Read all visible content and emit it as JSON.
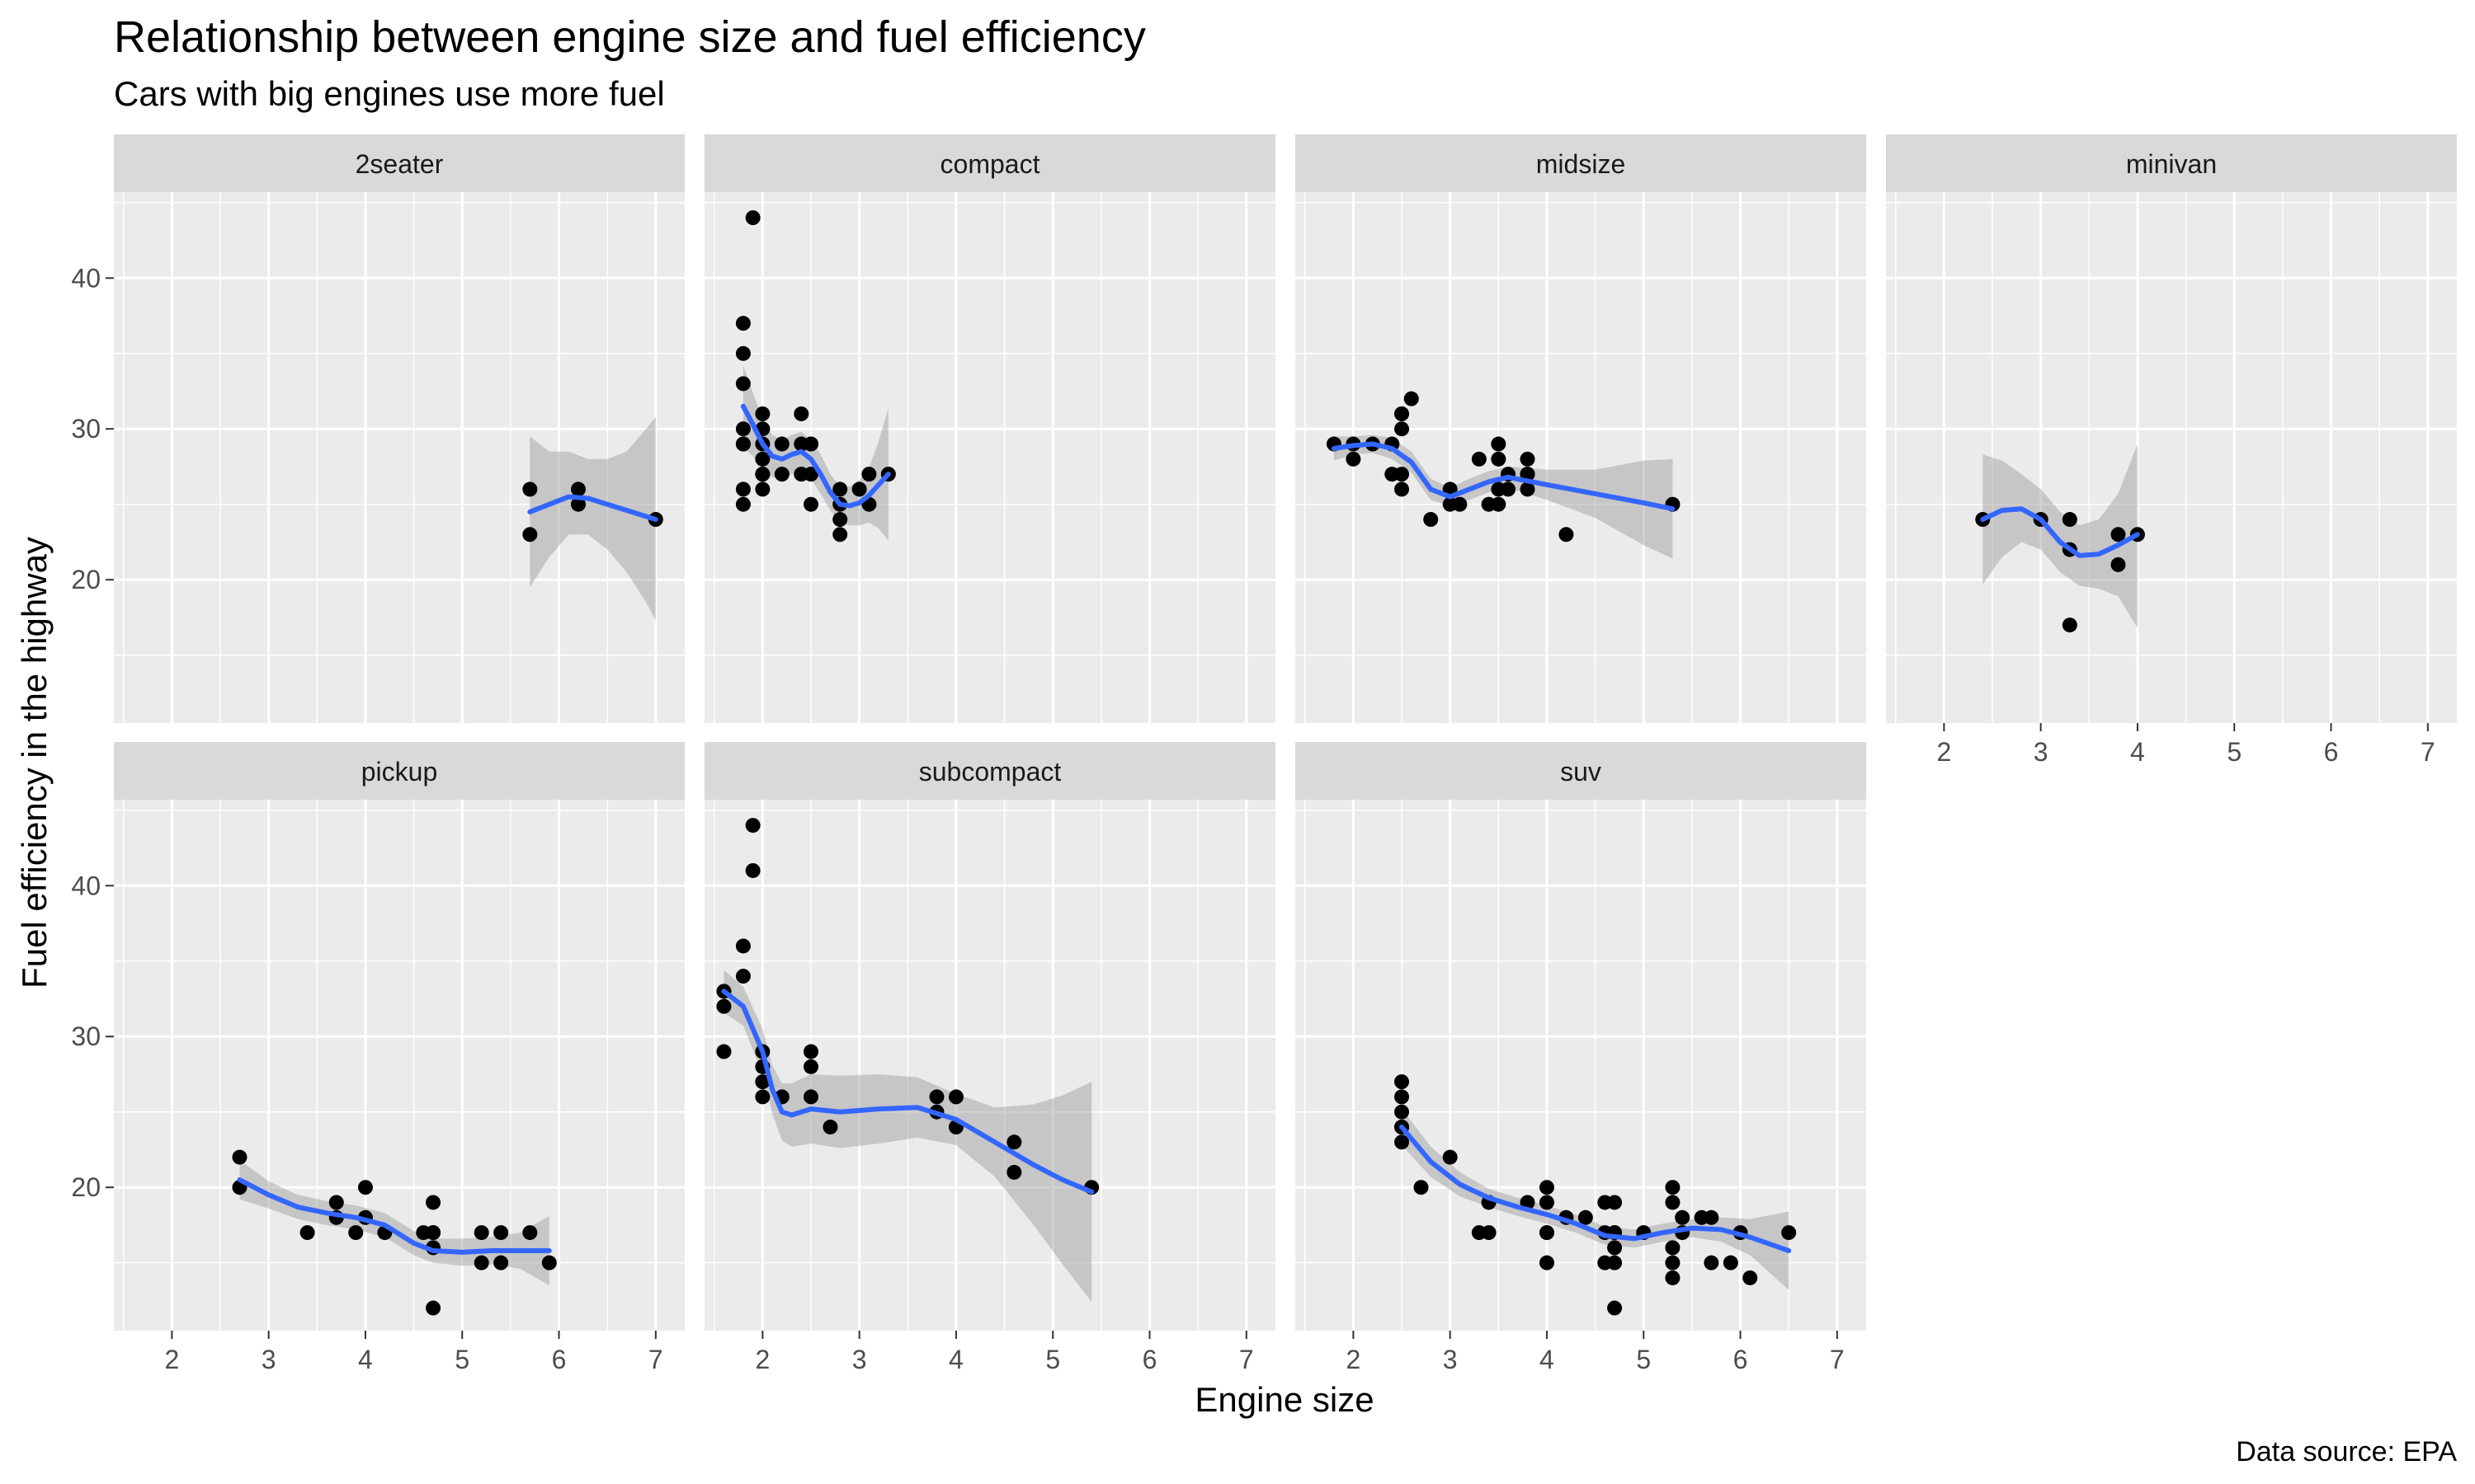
{
  "chart_data": {
    "type": "scatter",
    "title": "Relationship between engine size and fuel efficiency",
    "subtitle": "Cars with big engines use more fuel",
    "caption": "Data source: EPA",
    "xlabel": "Engine size",
    "ylabel": "Fuel efficiency in the highway",
    "xlim": [
      1.4,
      7.3
    ],
    "ylim": [
      10.5,
      45.7
    ],
    "x_ticks": [
      2,
      3,
      4,
      5,
      6,
      7
    ],
    "y_ticks": [
      20,
      30,
      40
    ],
    "grid": true,
    "facet_by": "class",
    "facet_layout": {
      "ncol": 4,
      "nrow": 2
    },
    "colors": {
      "points": "#000000",
      "smooth_line": "#3366FF",
      "ribbon": "#999999",
      "panel_bg": "#EBEBEB",
      "strip_bg": "#D9D9D9",
      "grid": "#FFFFFF"
    },
    "panels": [
      {
        "name": "2seater",
        "x": [
          5.7,
          5.7,
          6.2,
          6.2,
          7.0
        ],
        "y": [
          26,
          23,
          26,
          25,
          24
        ],
        "smooth": {
          "x": [
            5.7,
            5.9,
            6.1,
            6.3,
            6.5,
            6.7,
            6.9,
            7.0
          ],
          "y": [
            24.5,
            25.0,
            25.5,
            25.4,
            25.0,
            24.6,
            24.2,
            24.0
          ],
          "ymin": [
            19.5,
            21.5,
            23.0,
            23.0,
            22.0,
            20.5,
            18.5,
            17.3
          ],
          "ymax": [
            29.5,
            28.5,
            28.5,
            28.0,
            28.0,
            28.5,
            30.0,
            30.8
          ]
        }
      },
      {
        "name": "compact",
        "x": [
          1.8,
          1.8,
          1.8,
          1.8,
          1.8,
          1.8,
          1.8,
          1.8,
          1.9,
          2.0,
          2.0,
          2.0,
          2.0,
          2.0,
          2.0,
          2.0,
          2.2,
          2.2,
          2.4,
          2.4,
          2.4,
          2.5,
          2.5,
          2.5,
          2.5,
          2.8,
          2.8,
          2.8,
          2.8,
          3.0,
          3.1,
          3.1,
          3.3
        ],
        "y": [
          29,
          29,
          30,
          33,
          35,
          37,
          25,
          26,
          44,
          26,
          27,
          28,
          29,
          30,
          31,
          27,
          27,
          29,
          31,
          29,
          27,
          29,
          27,
          25,
          29,
          26,
          24,
          25,
          23,
          26,
          25,
          27,
          27
        ],
        "smooth": {
          "x": [
            1.8,
            1.9,
            2.0,
            2.1,
            2.2,
            2.3,
            2.4,
            2.5,
            2.6,
            2.7,
            2.8,
            2.9,
            3.0,
            3.1,
            3.2,
            3.3
          ],
          "y": [
            31.5,
            30.3,
            29.0,
            28.2,
            28.0,
            28.3,
            28.5,
            28.0,
            27.0,
            25.8,
            25.0,
            24.9,
            25.1,
            25.6,
            26.3,
            27.0
          ],
          "ymin": [
            28.8,
            28.2,
            27.3,
            26.8,
            26.7,
            27.0,
            27.2,
            26.7,
            25.7,
            24.6,
            23.8,
            23.6,
            23.6,
            23.8,
            23.4,
            22.6
          ],
          "ymax": [
            34.2,
            32.4,
            30.7,
            29.6,
            29.3,
            29.6,
            29.8,
            29.3,
            28.3,
            27.0,
            26.2,
            26.2,
            26.6,
            27.4,
            29.2,
            31.4
          ]
        }
      },
      {
        "name": "midsize",
        "x": [
          1.8,
          2.0,
          2.0,
          2.2,
          2.4,
          2.4,
          2.5,
          2.5,
          2.5,
          2.5,
          2.5,
          2.6,
          2.8,
          3.0,
          3.0,
          3.1,
          3.3,
          3.4,
          3.5,
          3.5,
          3.5,
          3.5,
          3.6,
          3.6,
          3.8,
          3.8,
          3.8,
          3.8,
          4.2,
          5.3
        ],
        "y": [
          29,
          29,
          28,
          29,
          27,
          29,
          31,
          30,
          27,
          26,
          31,
          32,
          24,
          26,
          25,
          25,
          28,
          25,
          29,
          28,
          26,
          25,
          27,
          26,
          28,
          27,
          26,
          27,
          23,
          25
        ],
        "smooth": {
          "x": [
            1.8,
            2.0,
            2.2,
            2.4,
            2.6,
            2.8,
            3.0,
            3.2,
            3.4,
            3.6,
            4.0,
            4.5,
            5.0,
            5.3
          ],
          "y": [
            28.7,
            28.9,
            29.0,
            28.7,
            27.8,
            26.0,
            25.5,
            26.0,
            26.5,
            26.8,
            26.3,
            25.7,
            25.1,
            24.7
          ],
          "ymin": [
            27.9,
            28.3,
            28.4,
            28.0,
            27.1,
            25.3,
            24.9,
            25.3,
            25.8,
            26.1,
            25.3,
            24.1,
            22.3,
            21.4
          ],
          "ymax": [
            29.5,
            29.5,
            29.6,
            29.4,
            28.5,
            26.7,
            26.1,
            26.7,
            27.2,
            27.5,
            27.3,
            27.3,
            27.9,
            28.0
          ]
        }
      },
      {
        "name": "minivan",
        "x": [
          2.4,
          3.0,
          3.3,
          3.3,
          3.3,
          3.8,
          3.8,
          4.0
        ],
        "y": [
          24,
          24,
          22,
          24,
          17,
          23,
          21,
          23
        ],
        "smooth": {
          "x": [
            2.4,
            2.6,
            2.8,
            3.0,
            3.2,
            3.4,
            3.6,
            3.8,
            4.0
          ],
          "y": [
            24.0,
            24.6,
            24.7,
            24.0,
            22.5,
            21.6,
            21.7,
            22.3,
            23.0
          ],
          "ymin": [
            19.7,
            21.5,
            22.5,
            22.0,
            20.5,
            19.6,
            19.4,
            18.9,
            16.8
          ],
          "ymax": [
            28.3,
            27.9,
            27.0,
            26.0,
            24.5,
            23.6,
            24.0,
            25.7,
            29.0
          ]
        }
      },
      {
        "name": "pickup",
        "x": [
          2.7,
          2.7,
          3.4,
          3.7,
          3.7,
          3.9,
          4.0,
          4.0,
          4.2,
          4.6,
          4.7,
          4.7,
          4.7,
          4.7,
          4.7,
          5.2,
          5.2,
          5.4,
          5.4,
          5.7,
          5.9
        ],
        "y": [
          22,
          20,
          17,
          19,
          18,
          17,
          20,
          18,
          17,
          17,
          17,
          19,
          12,
          16,
          17,
          17,
          15,
          17,
          15,
          17,
          15
        ],
        "smooth": {
          "x": [
            2.7,
            3.0,
            3.3,
            3.6,
            3.9,
            4.2,
            4.5,
            4.7,
            5.0,
            5.3,
            5.6,
            5.9
          ],
          "y": [
            20.5,
            19.5,
            18.7,
            18.3,
            18.0,
            17.5,
            16.3,
            15.8,
            15.7,
            15.8,
            15.8,
            15.8
          ],
          "ymin": [
            19.2,
            18.6,
            17.9,
            17.5,
            17.2,
            16.7,
            15.5,
            15.0,
            14.8,
            14.9,
            14.6,
            13.5
          ],
          "ymax": [
            21.8,
            20.4,
            19.5,
            19.1,
            18.8,
            18.3,
            17.1,
            16.6,
            16.6,
            16.7,
            17.0,
            18.1
          ]
        }
      },
      {
        "name": "subcompact",
        "x": [
          1.6,
          1.6,
          1.6,
          1.8,
          1.8,
          1.9,
          1.9,
          2.0,
          2.0,
          2.0,
          2.0,
          2.2,
          2.5,
          2.5,
          2.5,
          2.7,
          3.8,
          3.8,
          4.0,
          4.0,
          4.6,
          4.6,
          5.4
        ],
        "y": [
          33,
          32,
          29,
          36,
          34,
          44,
          41,
          29,
          28,
          27,
          26,
          26,
          29,
          28,
          26,
          24,
          26,
          25,
          26,
          24,
          23,
          21,
          20
        ],
        "smooth": {
          "x": [
            1.6,
            1.8,
            2.0,
            2.1,
            2.2,
            2.3,
            2.5,
            2.8,
            3.2,
            3.6,
            4.0,
            4.4,
            4.8,
            5.1,
            5.4
          ],
          "y": [
            33.0,
            32.0,
            29.0,
            26.5,
            25.0,
            24.8,
            25.2,
            25.0,
            25.2,
            25.3,
            24.5,
            23.0,
            21.5,
            20.5,
            19.7
          ],
          "ymin": [
            31.6,
            30.7,
            27.5,
            24.9,
            23.1,
            22.7,
            22.9,
            22.6,
            22.9,
            23.3,
            22.8,
            20.7,
            17.5,
            14.9,
            12.4
          ],
          "ymax": [
            34.4,
            33.3,
            30.5,
            28.1,
            26.9,
            26.9,
            27.5,
            27.4,
            27.5,
            27.3,
            26.2,
            25.3,
            25.5,
            26.1,
            27.0
          ]
        }
      },
      {
        "name": "suv",
        "x": [
          2.5,
          2.5,
          2.5,
          2.5,
          2.5,
          2.5,
          2.7,
          3.0,
          3.3,
          3.4,
          3.4,
          3.8,
          4.0,
          4.0,
          4.0,
          4.0,
          4.0,
          4.2,
          4.4,
          4.6,
          4.6,
          4.6,
          4.7,
          4.7,
          4.7,
          4.7,
          4.7,
          4.7,
          5.0,
          5.3,
          5.3,
          5.3,
          5.3,
          5.3,
          5.4,
          5.4,
          5.6,
          5.7,
          5.7,
          5.9,
          6.0,
          6.1,
          6.5
        ],
        "y": [
          27,
          26,
          25,
          24,
          23,
          24,
          20,
          22,
          17,
          17,
          19,
          19,
          20,
          19,
          17,
          15,
          17,
          18,
          18,
          19,
          17,
          15,
          19,
          17,
          15,
          12,
          17,
          16,
          17,
          20,
          19,
          15,
          14,
          16,
          18,
          17,
          18,
          18,
          15,
          15,
          17,
          14,
          17
        ],
        "smooth": {
          "x": [
            2.5,
            2.8,
            3.1,
            3.4,
            3.7,
            4.0,
            4.3,
            4.6,
            4.9,
            5.2,
            5.5,
            5.8,
            6.1,
            6.5
          ],
          "y": [
            24.0,
            21.7,
            20.2,
            19.3,
            18.7,
            18.2,
            17.6,
            16.8,
            16.6,
            17.0,
            17.3,
            17.2,
            16.7,
            15.8
          ],
          "ymin": [
            22.8,
            20.7,
            19.4,
            18.7,
            18.1,
            17.6,
            17.0,
            16.2,
            16.0,
            16.4,
            16.7,
            16.4,
            15.5,
            13.2
          ],
          "ymax": [
            25.2,
            22.7,
            21.0,
            19.9,
            19.3,
            18.8,
            18.2,
            17.4,
            17.2,
            17.6,
            17.9,
            18.0,
            17.9,
            18.4
          ]
        }
      }
    ]
  }
}
